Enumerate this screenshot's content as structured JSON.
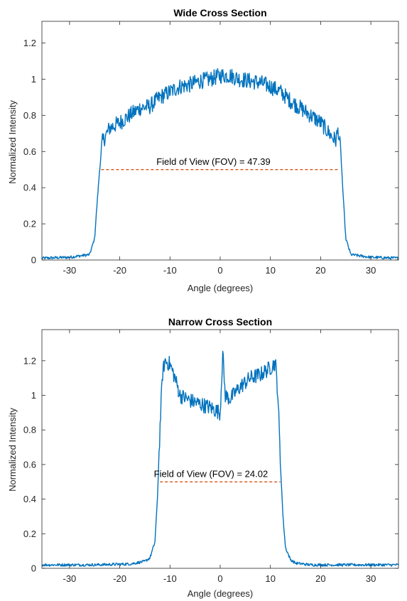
{
  "chart_data": [
    {
      "type": "line",
      "title": "Wide Cross Section",
      "xlabel": "Angle (degrees)",
      "ylabel": "Normalized Intensity",
      "xlim": [
        -35.5,
        35.5
      ],
      "ylim": [
        0,
        1.32
      ],
      "xticks": [
        -30,
        -20,
        -10,
        0,
        10,
        20,
        30
      ],
      "yticks": [
        0,
        0.2,
        0.4,
        0.6,
        0.8,
        1,
        1.2
      ],
      "xtick_labels": [
        "-30",
        "-20",
        "-10",
        "0",
        "10",
        "20",
        "30"
      ],
      "ytick_labels": [
        "0",
        "0.2",
        "0.4",
        "0.6",
        "0.8",
        "1",
        "1.2"
      ],
      "grid": false,
      "series": [
        {
          "color": "#0072BD",
          "x": [
            -35.5,
            -30,
            -26,
            -25,
            -24.5,
            -24,
            -23.5,
            -22,
            -20,
            -18,
            -16,
            -14,
            -12,
            -10,
            -8,
            -6,
            -4,
            -2,
            0,
            2,
            4,
            6,
            8,
            10,
            12,
            14,
            16,
            18,
            20,
            22,
            23,
            23.5,
            24,
            24.5,
            25,
            26,
            30,
            35.5
          ],
          "y": [
            0.01,
            0.015,
            0.03,
            0.12,
            0.32,
            0.5,
            0.65,
            0.73,
            0.76,
            0.8,
            0.84,
            0.85,
            0.9,
            0.93,
            0.96,
            0.97,
            0.99,
            1.0,
            1.02,
            1.02,
            1.0,
            0.99,
            0.98,
            0.96,
            0.93,
            0.88,
            0.84,
            0.8,
            0.76,
            0.69,
            0.66,
            0.72,
            0.6,
            0.35,
            0.12,
            0.03,
            0.015,
            0.01
          ]
        },
        {
          "color": "#D95319",
          "dashed": true,
          "x": [
            -23.7,
            23.7
          ],
          "y": [
            0.5,
            0.5
          ]
        }
      ],
      "annotations": [
        {
          "text": "Field of View (FOV) = 47.39",
          "x": -12.7,
          "y": 0.515
        }
      ]
    },
    {
      "type": "line",
      "title": "Narrow Cross Section",
      "xlabel": "Angle (degrees)",
      "ylabel": "Normalized Intensity",
      "xlim": [
        -35.5,
        35.5
      ],
      "ylim": [
        0,
        1.38
      ],
      "xticks": [
        -30,
        -20,
        -10,
        0,
        10,
        20,
        30
      ],
      "yticks": [
        0,
        0.2,
        0.4,
        0.6,
        0.8,
        1,
        1.2
      ],
      "xtick_labels": [
        "-30",
        "-20",
        "-10",
        "0",
        "10",
        "20",
        "30"
      ],
      "ytick_labels": [
        "0",
        "0.2",
        "0.4",
        "0.6",
        "0.8",
        "1",
        "1.2"
      ],
      "grid": false,
      "series": [
        {
          "color": "#0072BD",
          "x": [
            -35.5,
            -25,
            -18,
            -15,
            -14,
            -13,
            -12.5,
            -12,
            -11.5,
            -11,
            -10,
            -9,
            -8,
            -6,
            -4,
            -2,
            0,
            0.5,
            1,
            2,
            4,
            6,
            8,
            10,
            11,
            11.5,
            12,
            12.5,
            13,
            14,
            15,
            18,
            25,
            35.5
          ],
          "y": [
            0.02,
            0.02,
            0.025,
            0.04,
            0.06,
            0.15,
            0.4,
            0.8,
            1.12,
            1.2,
            1.18,
            1.1,
            1.0,
            0.97,
            0.95,
            0.93,
            0.9,
            1.25,
            1.0,
            0.98,
            1.05,
            1.1,
            1.12,
            1.16,
            1.19,
            1.0,
            0.6,
            0.3,
            0.12,
            0.05,
            0.03,
            0.02,
            0.02,
            0.02
          ]
        },
        {
          "color": "#D95319",
          "dashed": true,
          "x": [
            -12.0,
            12.0
          ],
          "y": [
            0.5,
            0.5
          ]
        }
      ],
      "annotations": [
        {
          "text": "Field of View (FOV) = 24.02",
          "x": -13.2,
          "y": 0.515
        }
      ]
    }
  ]
}
